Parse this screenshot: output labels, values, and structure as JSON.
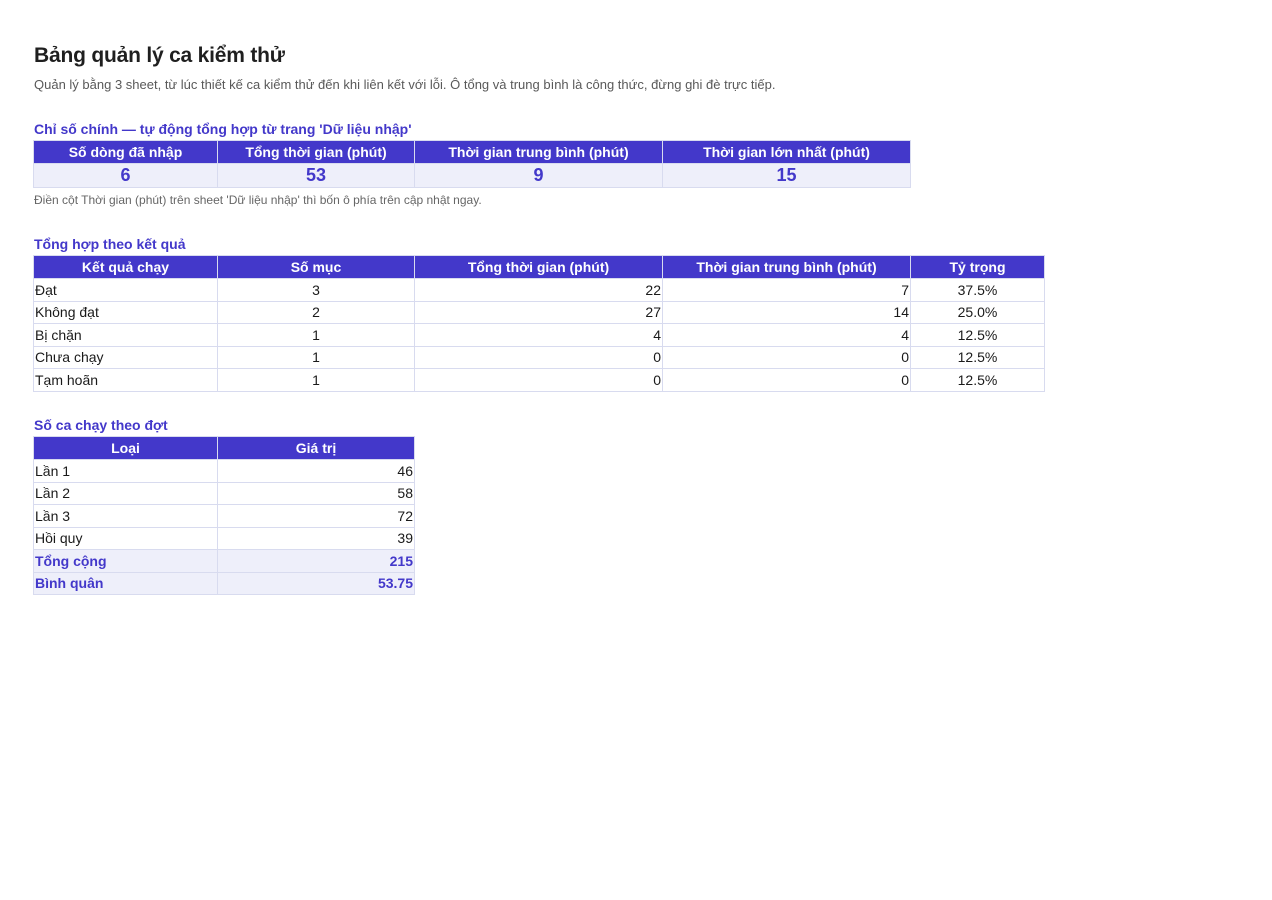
{
  "title": "Bảng quản lý ca kiểm thử",
  "subtitle": "Quản lý bằng 3 sheet, từ lúc thiết kế ca kiểm thử đến khi liên kết với lỗi. Ô tổng và trung bình là công thức, đừng ghi đè trực tiếp.",
  "kpi": {
    "title": "Chỉ số chính — tự động tổng hợp từ trang 'Dữ liệu nhập'",
    "headers": [
      "Số dòng đã nhập",
      "Tổng thời gian (phút)",
      "Thời gian trung bình (phút)",
      "Thời gian lớn nhất (phút)"
    ],
    "values": [
      "6",
      "53",
      "9",
      "15"
    ],
    "note": "Điền cột Thời gian (phút) trên sheet 'Dữ liệu nhập' thì bốn ô phía trên cập nhật ngay."
  },
  "by_result": {
    "title": "Tổng hợp theo kết quả",
    "headers": [
      "Kết quả chạy",
      "Số mục",
      "Tổng thời gian (phút)",
      "Thời gian trung bình (phút)",
      "Tỷ trọng"
    ],
    "rows": [
      [
        "Đạt",
        "3",
        "22",
        "7",
        "37.5%"
      ],
      [
        "Không đạt",
        "2",
        "27",
        "14",
        "25.0%"
      ],
      [
        "Bị chặn",
        "1",
        "4",
        "4",
        "12.5%"
      ],
      [
        "Chưa chạy",
        "1",
        "0",
        "0",
        "12.5%"
      ],
      [
        "Tạm hoãn",
        "1",
        "0",
        "0",
        "12.5%"
      ]
    ]
  },
  "by_round": {
    "title": "Số ca chạy theo đợt",
    "headers": [
      "Loại",
      "Giá trị"
    ],
    "rows": [
      [
        "Lần 1",
        "46"
      ],
      [
        "Lần 2",
        "58"
      ],
      [
        "Lần 3",
        "72"
      ],
      [
        "Hồi quy",
        "39"
      ]
    ],
    "total": [
      "Tổng cộng",
      "215"
    ],
    "average": [
      "Bình quân",
      "53.75"
    ]
  },
  "colors": {
    "accent": "#4338ca",
    "accent_light": "#eeeffa",
    "border": "#d8dbef"
  }
}
